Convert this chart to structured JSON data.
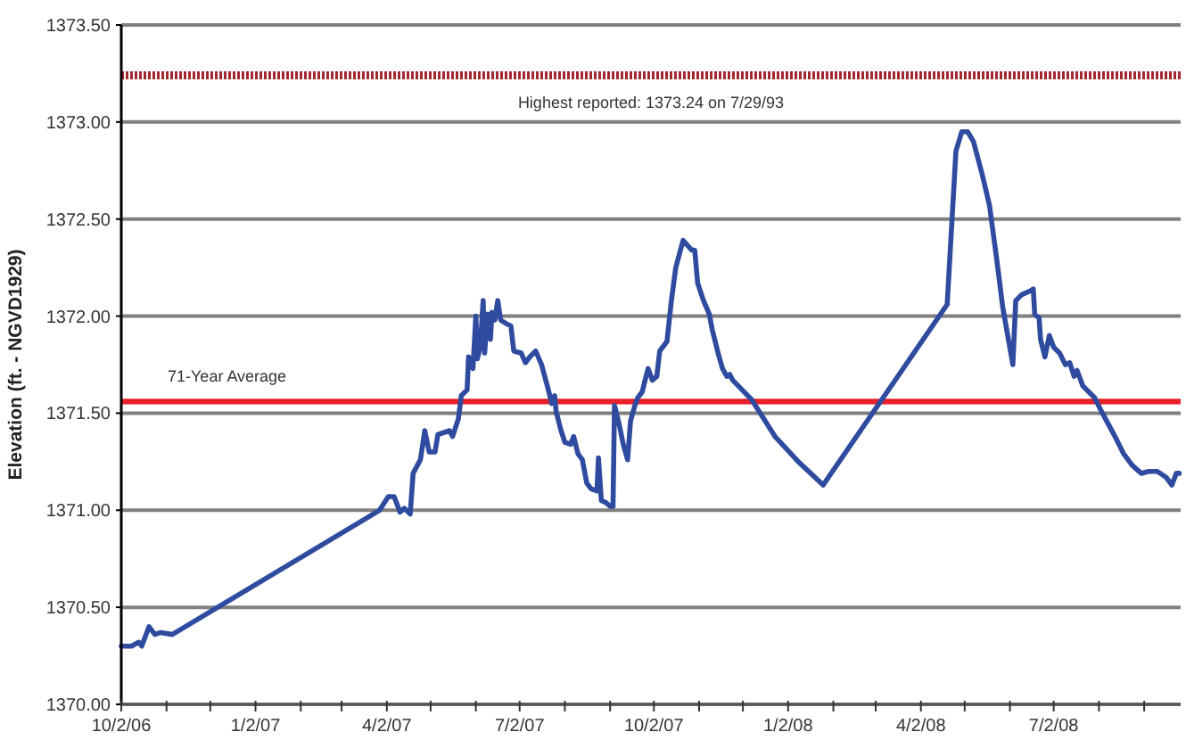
{
  "chart_data": {
    "type": "line",
    "ylabel": "Elevation (ft. - NGVD1929)",
    "x": [
      "2006-10-02",
      "2006-10-09",
      "2006-10-14",
      "2006-10-16",
      "2006-10-21",
      "2006-10-25",
      "2006-10-29",
      "2006-11-06",
      "2007-03-28",
      "2007-04-03",
      "2007-04-07",
      "2007-04-11",
      "2007-04-14",
      "2007-04-18",
      "2007-04-20",
      "2007-04-25",
      "2007-04-28",
      "2007-05-01",
      "2007-05-05",
      "2007-05-07",
      "2007-05-15",
      "2007-05-17",
      "2007-05-21",
      "2007-05-23",
      "2007-05-27",
      "2007-05-28",
      "2007-05-31",
      "2007-06-02",
      "2007-06-03",
      "2007-06-05",
      "2007-06-07",
      "2007-06-08",
      "2007-06-10",
      "2007-06-12",
      "2007-06-13",
      "2007-06-15",
      "2007-06-17",
      "2007-06-19",
      "2007-06-23",
      "2007-06-26",
      "2007-06-28",
      "2007-07-03",
      "2007-07-06",
      "2007-07-09",
      "2007-07-13",
      "2007-07-17",
      "2007-07-21",
      "2007-07-24",
      "2007-07-26",
      "2007-07-27",
      "2007-07-30",
      "2007-08-02",
      "2007-08-06",
      "2007-08-08",
      "2007-08-11",
      "2007-08-14",
      "2007-08-17",
      "2007-08-20",
      "2007-08-24",
      "2007-08-25",
      "2007-08-27",
      "2007-08-30",
      "2007-09-02",
      "2007-09-04",
      "2007-09-05",
      "2007-09-08",
      "2007-09-11",
      "2007-09-14",
      "2007-09-16",
      "2007-09-19",
      "2007-09-21",
      "2007-09-24",
      "2007-09-27",
      "2007-09-28",
      "2007-10-01",
      "2007-10-04",
      "2007-10-06",
      "2007-10-09",
      "2007-10-11",
      "2007-10-14",
      "2007-10-17",
      "2007-10-22",
      "2007-10-28",
      "2007-10-30",
      "2007-11-01",
      "2007-11-05",
      "2007-11-09",
      "2007-11-11",
      "2007-11-15",
      "2007-11-18",
      "2007-11-21",
      "2007-11-23",
      "2007-11-25",
      "2007-12-08",
      "2007-12-24",
      "2008-01-09",
      "2008-01-26",
      "2008-04-20",
      "2008-04-26",
      "2008-04-30",
      "2008-05-04",
      "2008-05-08",
      "2008-05-14",
      "2008-05-19",
      "2008-05-24",
      "2008-05-28",
      "2008-06-04",
      "2008-06-06",
      "2008-06-10",
      "2008-06-16",
      "2008-06-18",
      "2008-06-19",
      "2008-06-22",
      "2008-06-23",
      "2008-06-26",
      "2008-06-29",
      "2008-07-02",
      "2008-07-06",
      "2008-07-10",
      "2008-07-13",
      "2008-07-16",
      "2008-07-18",
      "2008-07-22",
      "2008-07-26",
      "2008-07-30",
      "2008-08-03",
      "2008-08-08",
      "2008-08-13",
      "2008-08-19",
      "2008-08-25",
      "2008-08-31",
      "2008-09-05",
      "2008-09-11",
      "2008-09-17",
      "2008-09-21",
      "2008-09-24",
      "2008-09-26"
    ],
    "series": [
      {
        "color": "#2f4b9f",
        "values": [
          1370.3,
          1370.3,
          1370.32,
          1370.3,
          1370.4,
          1370.36,
          1370.37,
          1370.36,
          1371.0,
          1371.07,
          1371.07,
          1370.99,
          1371.01,
          1370.98,
          1371.19,
          1371.26,
          1371.41,
          1371.3,
          1371.3,
          1371.39,
          1371.41,
          1371.38,
          1371.47,
          1371.59,
          1371.62,
          1371.79,
          1371.73,
          1372.0,
          1371.78,
          1371.84,
          1372.08,
          1371.81,
          1372.01,
          1371.88,
          1372.02,
          1371.98,
          1372.08,
          1371.98,
          1371.96,
          1371.95,
          1371.82,
          1371.81,
          1371.76,
          1371.79,
          1371.82,
          1371.75,
          1371.64,
          1371.55,
          1371.59,
          1371.51,
          1371.42,
          1371.35,
          1371.34,
          1371.38,
          1371.29,
          1371.26,
          1371.14,
          1371.11,
          1371.1,
          1371.27,
          1371.05,
          1371.04,
          1371.02,
          1371.02,
          1371.54,
          1371.45,
          1371.34,
          1371.26,
          1371.46,
          1371.54,
          1371.58,
          1371.61,
          1371.7,
          1371.73,
          1371.67,
          1371.69,
          1371.82,
          1371.85,
          1371.87,
          1372.08,
          1372.25,
          1372.39,
          1372.34,
          1372.34,
          1372.17,
          1372.08,
          1372.01,
          1371.93,
          1371.81,
          1371.73,
          1371.69,
          1371.7,
          1371.67,
          1371.57,
          1371.38,
          1371.25,
          1371.13,
          1372.06,
          1372.85,
          1372.95,
          1372.95,
          1372.9,
          1372.73,
          1372.57,
          1372.29,
          1372.05,
          1371.75,
          1372.08,
          1372.11,
          1372.13,
          1372.14,
          1372.01,
          1371.99,
          1371.88,
          1371.79,
          1371.9,
          1371.84,
          1371.81,
          1371.75,
          1371.76,
          1371.69,
          1371.72,
          1371.64,
          1371.61,
          1371.58,
          1371.52,
          1371.45,
          1371.38,
          1371.29,
          1371.23,
          1371.19,
          1371.2,
          1371.2,
          1371.17,
          1371.13,
          1371.19,
          1371.19
        ]
      }
    ],
    "xlim": [
      "2006-10-02",
      "2008-09-27"
    ],
    "xticks": [
      {
        "value": "2006-10-02",
        "label": "10/2/06"
      },
      {
        "value": "2006-11-02",
        "label": null
      },
      {
        "value": "2006-12-02",
        "label": null
      },
      {
        "value": "2007-01-02",
        "label": "1/2/07"
      },
      {
        "value": "2007-02-02",
        "label": null
      },
      {
        "value": "2007-03-02",
        "label": null
      },
      {
        "value": "2007-04-02",
        "label": "4/2/07"
      },
      {
        "value": "2007-05-02",
        "label": null
      },
      {
        "value": "2007-06-02",
        "label": null
      },
      {
        "value": "2007-07-02",
        "label": "7/2/07"
      },
      {
        "value": "2007-08-02",
        "label": null
      },
      {
        "value": "2007-09-02",
        "label": null
      },
      {
        "value": "2007-10-02",
        "label": "10/2/07"
      },
      {
        "value": "2007-11-02",
        "label": null
      },
      {
        "value": "2007-12-02",
        "label": null
      },
      {
        "value": "2008-01-02",
        "label": "1/2/08"
      },
      {
        "value": "2008-02-02",
        "label": null
      },
      {
        "value": "2008-03-02",
        "label": null
      },
      {
        "value": "2008-04-02",
        "label": "4/2/08"
      },
      {
        "value": "2008-05-02",
        "label": null
      },
      {
        "value": "2008-06-02",
        "label": null
      },
      {
        "value": "2008-07-02",
        "label": "7/2/08"
      },
      {
        "value": "2008-08-02",
        "label": null
      },
      {
        "value": "2008-09-02",
        "label": null
      }
    ],
    "ylim": [
      1370,
      1373.5
    ],
    "yticks": [
      {
        "value": 1370,
        "label": "1370.00"
      },
      {
        "value": 1370.5,
        "label": "1370.50"
      },
      {
        "value": 1371,
        "label": "1371.00"
      },
      {
        "value": 1371.5,
        "label": "1371.50"
      },
      {
        "value": 1372,
        "label": "1372.00"
      },
      {
        "value": 1372.5,
        "label": "1372.50"
      },
      {
        "value": 1373,
        "label": "1373.00"
      },
      {
        "value": 1373.5,
        "label": "1373.50"
      }
    ],
    "grid": "y",
    "ref_lines": [
      {
        "axis": "y",
        "value": 1373.24,
        "label": "Highest reported: 1373.24 on 7/29/93",
        "color": "#a3282e",
        "line_style": "dotted"
      },
      {
        "axis": "y",
        "value": 1371.56,
        "label": "71-Year Average",
        "color": "#e8202a",
        "line_style": "solid"
      }
    ]
  }
}
